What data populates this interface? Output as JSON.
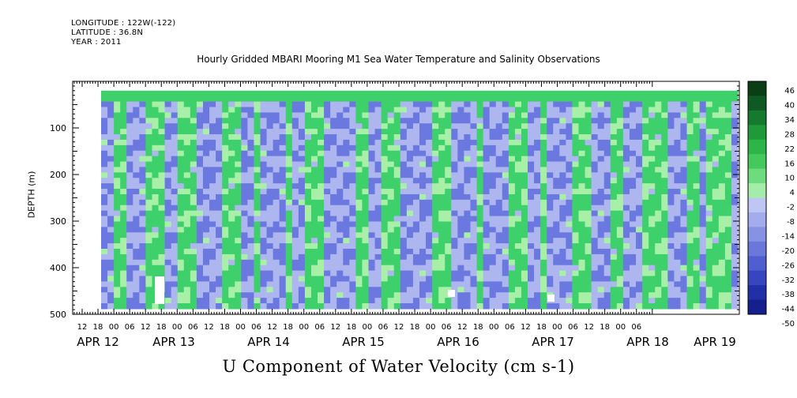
{
  "meta_lines": [
    "LONGITUDE : 122W(-122)",
    "LATITUDE : 36.8N",
    "YEAR : 2011"
  ],
  "title": "Hourly Gridded MBARI Mooring M1 Sea Water Temperature and Salinity Observations",
  "x_title": "U Component of Water Velocity (cm s-1)",
  "y_label": "DEPTH (m)",
  "chart_data": {
    "type": "heatmap",
    "title": "Hourly Gridded MBARI Mooring M1 Sea Water Temperature and Salinity Observations",
    "xlabel": "U Component of Water Velocity (cm s-1)",
    "ylabel": "DEPTH (m)",
    "x_range_hours_labelled": [
      "APR 12 12",
      "APR 19 09"
    ],
    "y_ticks": [
      100,
      200,
      300,
      400,
      500
    ],
    "y_range": [
      0,
      500
    ],
    "y_inverted": true,
    "data_depth_range": [
      20,
      488
    ],
    "x_hour_ticks": [
      "12",
      "18",
      "00",
      "06",
      "12",
      "18",
      "00",
      "06",
      "12",
      "18",
      "00",
      "06",
      "12",
      "18",
      "00",
      "06",
      "12",
      "18",
      "00",
      "06",
      "12",
      "18",
      "00",
      "06",
      "12",
      "18",
      "00",
      "06",
      "12",
      "18",
      "00",
      "06",
      "12",
      "18",
      "00",
      "06"
    ],
    "x_day_labels": [
      "APR 12",
      "APR 13",
      "APR 14",
      "APR 15",
      "APR 16",
      "APR 17",
      "APR 18",
      "APR 19"
    ],
    "colorbar_levels": [
      46,
      40,
      34,
      28,
      22,
      16,
      10,
      4,
      -2,
      -8,
      -14,
      -20,
      -26,
      -32,
      -38,
      -44,
      -50
    ],
    "colors": {
      "strong_neg": "#1a1a8c",
      "neg": "#6a78e0",
      "weak_neg": "#aeb6f0",
      "weak_pos": "#a8f0a8",
      "pos": "#3ed06a",
      "strong_pos": "#0a5a1e"
    },
    "pattern_note_columns_u_sign": [
      -1,
      1,
      -1,
      -1,
      1,
      1,
      -1,
      1,
      1,
      -1,
      -1,
      1,
      1,
      -1,
      1,
      -1,
      -1,
      1,
      -1,
      1,
      1,
      -1,
      -1,
      -1,
      1,
      -1,
      1,
      1,
      -1,
      -1,
      -1,
      1,
      1,
      -1,
      -1,
      1,
      -1,
      -1,
      1,
      1,
      -1,
      1,
      -1,
      -1,
      1,
      1,
      -1,
      -1,
      1,
      -1,
      -1,
      1,
      1,
      -1,
      -1,
      1,
      -1,
      1,
      1,
      -1
    ]
  }
}
